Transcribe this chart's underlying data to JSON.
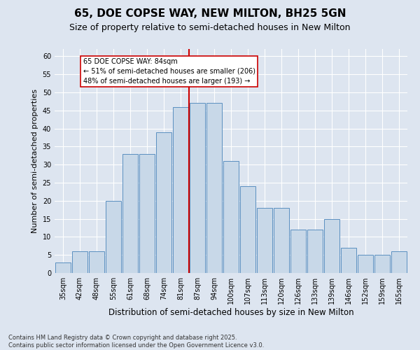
{
  "title": "65, DOE COPSE WAY, NEW MILTON, BH25 5GN",
  "subtitle": "Size of property relative to semi-detached houses in New Milton",
  "xlabel": "Distribution of semi-detached houses by size in New Milton",
  "ylabel": "Number of semi-detached properties",
  "categories": [
    "35sqm",
    "42sqm",
    "48sqm",
    "55sqm",
    "61sqm",
    "68sqm",
    "74sqm",
    "81sqm",
    "87sqm",
    "94sqm",
    "100sqm",
    "107sqm",
    "113sqm",
    "120sqm",
    "126sqm",
    "133sqm",
    "139sqm",
    "146sqm",
    "152sqm",
    "159sqm",
    "165sqm"
  ],
  "values": [
    3,
    6,
    6,
    20,
    33,
    33,
    39,
    46,
    47,
    47,
    31,
    24,
    18,
    18,
    12,
    12,
    15,
    7,
    5,
    5,
    6
  ],
  "bar_color": "#c8d8e8",
  "bar_edge_color": "#5a8fc0",
  "vline_x_index": 8,
  "vline_color": "#cc0000",
  "annotation_text": "65 DOE COPSE WAY: 84sqm\n← 51% of semi-detached houses are smaller (206)\n48% of semi-detached houses are larger (193) →",
  "annotation_box_color": "#ffffff",
  "annotation_box_edge_color": "#cc0000",
  "ylim": [
    0,
    62
  ],
  "yticks": [
    0,
    5,
    10,
    15,
    20,
    25,
    30,
    35,
    40,
    45,
    50,
    55,
    60
  ],
  "footnote": "Contains HM Land Registry data © Crown copyright and database right 2025.\nContains public sector information licensed under the Open Government Licence v3.0.",
  "bg_color": "#dde5f0",
  "plot_bg_color": "#dde5f0",
  "title_fontsize": 11,
  "subtitle_fontsize": 9,
  "xlabel_fontsize": 8.5,
  "ylabel_fontsize": 8,
  "tick_fontsize": 7,
  "footnote_fontsize": 6,
  "annotation_fontsize": 7
}
